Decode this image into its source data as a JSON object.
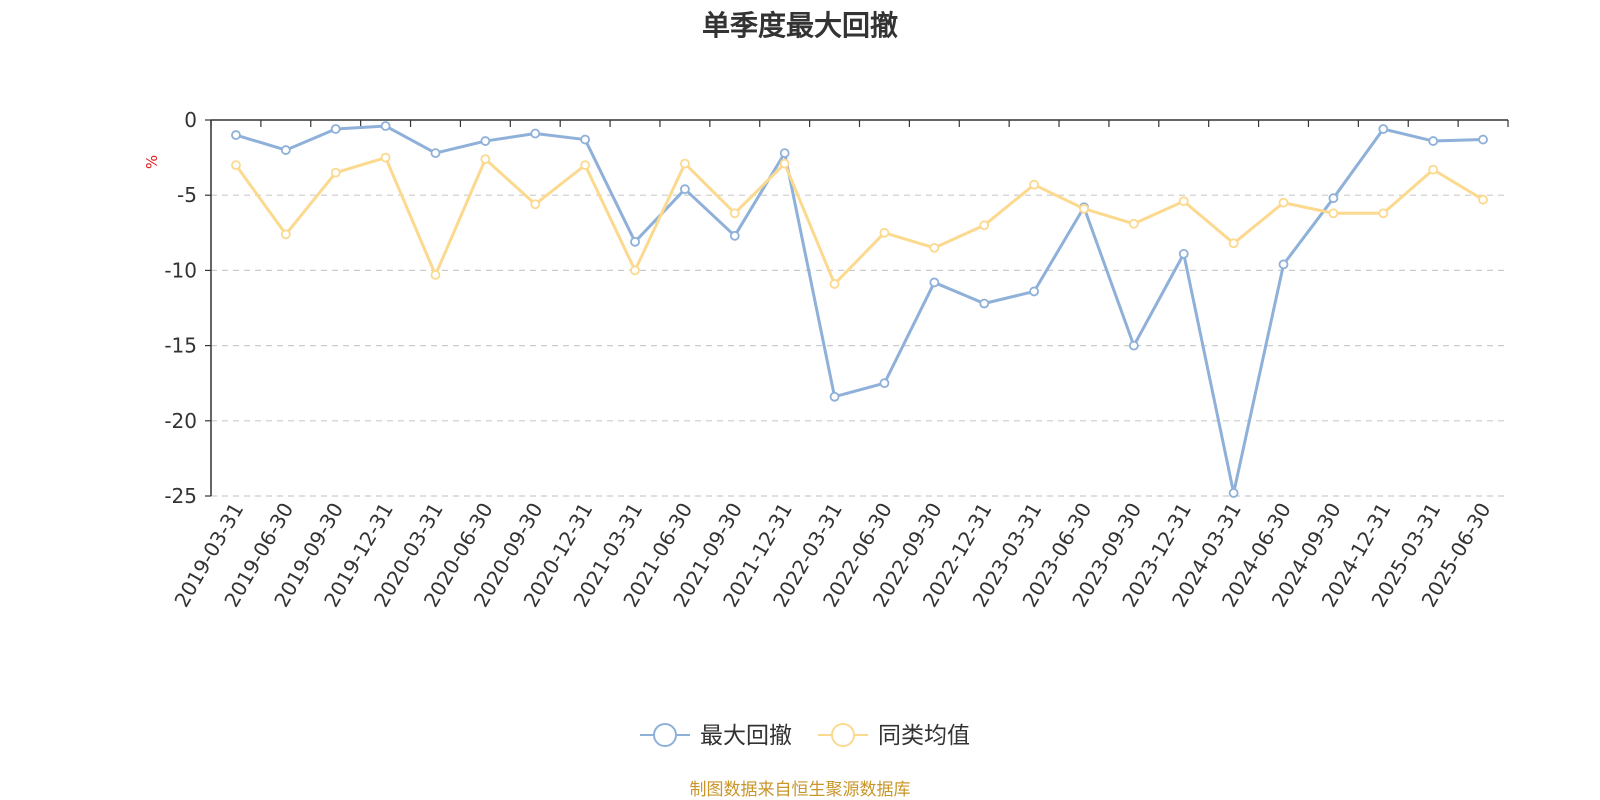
{
  "chart_data": {
    "type": "line",
    "title": "单季度最大回撤",
    "ylabel": "%",
    "ylim": [
      -25,
      0
    ],
    "yticks": [
      0,
      -5,
      -10,
      -15,
      -20,
      -25
    ],
    "grid": true,
    "legend_position": "bottom",
    "categories": [
      "2019-03-31",
      "2019-06-30",
      "2019-09-30",
      "2019-12-31",
      "2020-03-31",
      "2020-06-30",
      "2020-09-30",
      "2020-12-31",
      "2021-03-31",
      "2021-06-30",
      "2021-09-30",
      "2021-12-31",
      "2022-03-31",
      "2022-06-30",
      "2022-09-30",
      "2022-12-31",
      "2023-03-31",
      "2023-06-30",
      "2023-09-30",
      "2023-12-31",
      "2024-03-31",
      "2024-06-30",
      "2024-09-30",
      "2024-12-31",
      "2025-03-31",
      "2025-06-30"
    ],
    "series": [
      {
        "name": "最大回撤",
        "color": "#8eb0d9",
        "values": [
          -1.0,
          -2.0,
          -0.6,
          -0.4,
          -2.2,
          -1.4,
          -0.9,
          -1.3,
          -8.1,
          -4.6,
          -7.7,
          -2.2,
          -18.4,
          -17.5,
          -10.8,
          -12.2,
          -11.4,
          -5.8,
          -15.0,
          -8.9,
          -24.8,
          -9.6,
          -5.2,
          -0.6,
          -1.4,
          -1.3
        ]
      },
      {
        "name": "同类均值",
        "color": "#fbd98e",
        "values": [
          -3.0,
          -7.6,
          -3.5,
          -2.5,
          -10.3,
          -2.6,
          -5.6,
          -3.0,
          -10.0,
          -2.9,
          -6.2,
          -2.9,
          -10.9,
          -7.5,
          -8.5,
          -7.0,
          -4.3,
          -5.9,
          -6.9,
          -5.4,
          -8.2,
          -5.5,
          -6.2,
          -6.2,
          -3.3,
          -5.3
        ]
      }
    ]
  },
  "source_note": "制图数据来自恒生聚源数据库"
}
